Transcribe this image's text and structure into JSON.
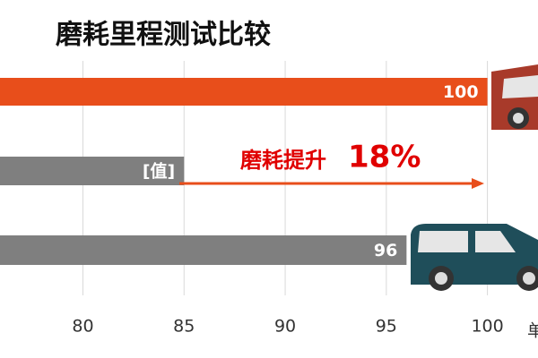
{
  "chart_data": {
    "type": "hbar",
    "title": "磨耗里程测试比较",
    "categories": [
      null,
      null,
      null
    ],
    "values": [
      100,
      85,
      96
    ],
    "value_labels": [
      "100",
      "[值]",
      "96"
    ],
    "colors": [
      "#e84e1b",
      "#7f7f7f",
      "#7f7f7f"
    ],
    "xlim": [
      75.9,
      102.5
    ],
    "xticks": [
      80,
      85,
      90,
      95,
      100
    ],
    "grid": true,
    "x_label": "单",
    "annotation": {
      "text": "磨耗提升",
      "highlight": "18%"
    }
  }
}
